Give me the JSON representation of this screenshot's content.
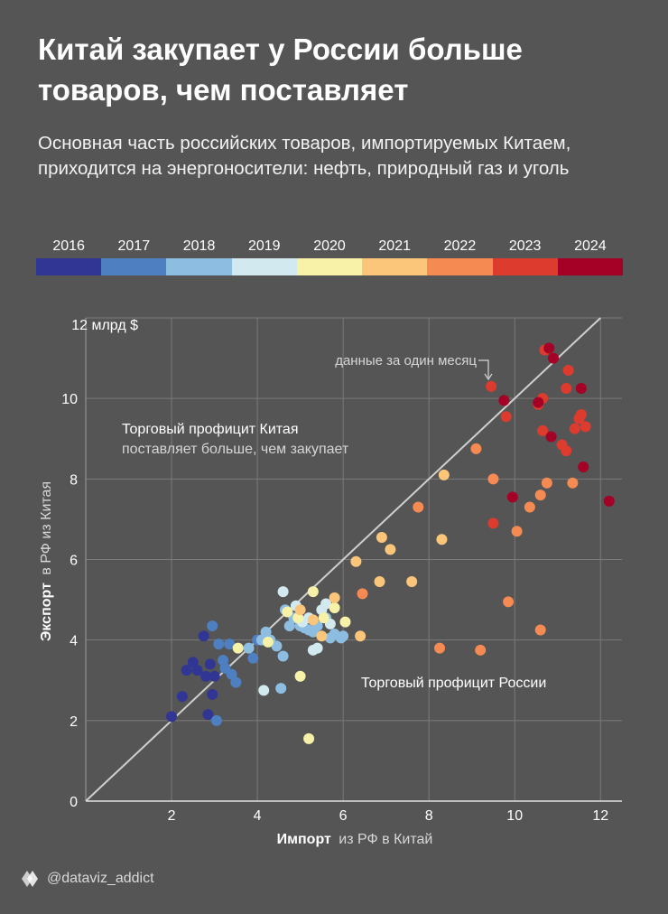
{
  "title": "Китай закупает у России больше товаров, чем поставляет",
  "subtitle": "Основная часть российских товаров, импортируемых Китаем, приходится на энергоносители: нефть, природный газ и уголь",
  "credit": "@dataviz_addict",
  "chart_data": {
    "type": "scatter",
    "xlabel_bold": "Импорт",
    "xlabel_rest": "из РФ в Китай",
    "ylabel_bold": "Экспорт",
    "ylabel_rest": "в РФ из Китая",
    "xlim": [
      0,
      12.5
    ],
    "ylim": [
      0,
      12
    ],
    "x_ticks": [
      2,
      4,
      6,
      8,
      10,
      12
    ],
    "y_ticks": [
      0,
      2,
      4,
      6,
      8,
      10
    ],
    "y_top_label": "12 млрд $",
    "grid": true,
    "reference_line": {
      "from": [
        0,
        0
      ],
      "to": [
        12,
        12
      ]
    },
    "annotations": {
      "china_surplus_title": "Торговый профицит Китая",
      "china_surplus_desc": "поставляет больше, чем закупает",
      "russia_surplus": "Торговый профицит России",
      "one_month": "данные за один месяц"
    },
    "legend": [
      {
        "year": "2016",
        "color": "#313695"
      },
      {
        "year": "2017",
        "color": "#4e7fc0"
      },
      {
        "year": "2018",
        "color": "#8dbde0"
      },
      {
        "year": "2019",
        "color": "#d2e9ef"
      },
      {
        "year": "2020",
        "color": "#f7f2a8"
      },
      {
        "year": "2021",
        "color": "#fbc67a"
      },
      {
        "year": "2022",
        "color": "#f58a52"
      },
      {
        "year": "2023",
        "color": "#dc3b2e"
      },
      {
        "year": "2024",
        "color": "#a50026"
      }
    ],
    "series": [
      {
        "year": "2016",
        "points": [
          [
            2.0,
            2.1
          ],
          [
            2.25,
            2.6
          ],
          [
            2.35,
            3.25
          ],
          [
            2.5,
            3.45
          ],
          [
            2.6,
            3.25
          ],
          [
            2.75,
            4.1
          ],
          [
            2.8,
            3.1
          ],
          [
            2.85,
            2.15
          ],
          [
            2.9,
            3.4
          ],
          [
            2.95,
            2.65
          ],
          [
            3.0,
            3.1
          ]
        ]
      },
      {
        "year": "2017",
        "points": [
          [
            2.95,
            4.35
          ],
          [
            3.05,
            2.0
          ],
          [
            3.1,
            3.9
          ],
          [
            3.2,
            3.5
          ],
          [
            3.25,
            3.3
          ],
          [
            3.35,
            3.9
          ],
          [
            3.4,
            3.15
          ],
          [
            3.5,
            2.95
          ],
          [
            3.9,
            3.55
          ],
          [
            4.0,
            4.0
          ]
        ]
      },
      {
        "year": "2018",
        "points": [
          [
            3.8,
            3.8
          ],
          [
            4.1,
            4.0
          ],
          [
            4.2,
            4.2
          ],
          [
            4.3,
            4.0
          ],
          [
            4.45,
            3.85
          ],
          [
            4.55,
            2.8
          ],
          [
            4.6,
            3.6
          ],
          [
            4.65,
            4.75
          ],
          [
            4.75,
            4.35
          ],
          [
            4.85,
            4.55
          ],
          [
            5.0,
            4.35
          ],
          [
            5.1,
            4.3
          ],
          [
            5.2,
            4.25
          ],
          [
            5.3,
            4.2
          ],
          [
            5.4,
            4.35
          ],
          [
            5.6,
            4.55
          ],
          [
            5.7,
            4.05
          ],
          [
            5.8,
            4.15
          ],
          [
            5.95,
            4.05
          ],
          [
            6.0,
            4.1
          ]
        ]
      },
      {
        "year": "2019",
        "points": [
          [
            4.15,
            2.75
          ],
          [
            4.6,
            5.2
          ],
          [
            4.9,
            4.85
          ],
          [
            5.05,
            4.45
          ],
          [
            5.2,
            4.55
          ],
          [
            5.3,
            3.75
          ],
          [
            5.4,
            3.8
          ],
          [
            5.5,
            4.75
          ],
          [
            5.6,
            4.9
          ],
          [
            5.7,
            4.4
          ]
        ]
      },
      {
        "year": "2020",
        "points": [
          [
            3.55,
            3.8
          ],
          [
            4.25,
            3.95
          ],
          [
            4.7,
            4.7
          ],
          [
            4.95,
            4.55
          ],
          [
            5.0,
            3.1
          ],
          [
            5.2,
            1.55
          ],
          [
            5.3,
            5.2
          ],
          [
            5.55,
            4.55
          ],
          [
            5.8,
            4.8
          ],
          [
            6.05,
            4.45
          ]
        ]
      },
      {
        "year": "2021",
        "points": [
          [
            5.0,
            4.75
          ],
          [
            5.3,
            4.5
          ],
          [
            5.5,
            4.1
          ],
          [
            5.8,
            5.05
          ],
          [
            6.3,
            5.95
          ],
          [
            6.4,
            4.1
          ],
          [
            6.85,
            5.45
          ],
          [
            6.9,
            6.55
          ],
          [
            7.1,
            6.25
          ],
          [
            7.6,
            5.45
          ],
          [
            8.3,
            6.5
          ],
          [
            8.35,
            8.1
          ]
        ]
      },
      {
        "year": "2022",
        "points": [
          [
            6.45,
            5.15
          ],
          [
            7.75,
            7.3
          ],
          [
            8.25,
            3.8
          ],
          [
            9.1,
            8.75
          ],
          [
            9.2,
            3.75
          ],
          [
            9.5,
            8.0
          ],
          [
            9.85,
            4.95
          ],
          [
            10.05,
            6.7
          ],
          [
            10.35,
            7.3
          ],
          [
            10.6,
            7.6
          ],
          [
            10.6,
            4.25
          ],
          [
            10.75,
            7.9
          ],
          [
            11.35,
            7.9
          ]
        ]
      },
      {
        "year": "2023",
        "points": [
          [
            9.45,
            10.3
          ],
          [
            9.5,
            6.9
          ],
          [
            9.8,
            9.55
          ],
          [
            10.55,
            9.85
          ],
          [
            10.65,
            10.0
          ],
          [
            10.65,
            9.2
          ],
          [
            10.7,
            11.2
          ],
          [
            11.1,
            8.85
          ],
          [
            11.2,
            8.7
          ],
          [
            11.2,
            10.25
          ],
          [
            11.25,
            10.7
          ],
          [
            11.4,
            9.25
          ],
          [
            11.5,
            9.5
          ],
          [
            11.55,
            9.6
          ],
          [
            11.65,
            9.3
          ]
        ]
      },
      {
        "year": "2024",
        "points": [
          [
            9.75,
            9.95
          ],
          [
            9.95,
            7.55
          ],
          [
            10.55,
            9.9
          ],
          [
            10.8,
            11.25
          ],
          [
            10.85,
            9.05
          ],
          [
            10.9,
            11.0
          ],
          [
            11.55,
            10.25
          ],
          [
            11.6,
            8.3
          ],
          [
            12.2,
            7.45
          ]
        ]
      }
    ]
  }
}
